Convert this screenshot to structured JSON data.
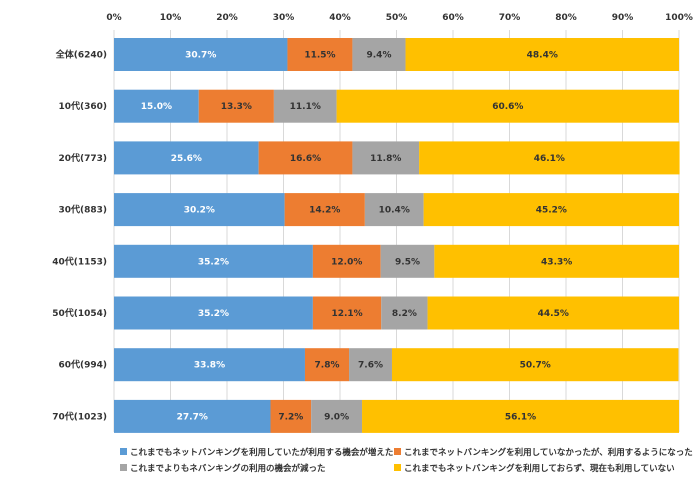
{
  "chart_data": {
    "type": "bar",
    "orientation": "horizontal",
    "stacked": true,
    "xlim": [
      0,
      100
    ],
    "x_ticks": [
      "0%",
      "10%",
      "20%",
      "30%",
      "40%",
      "50%",
      "60%",
      "70%",
      "80%",
      "90%",
      "100%"
    ],
    "grid": true,
    "legend_position": "bottom",
    "categories": [
      "全体(6240)",
      "10代(360)",
      "20代(773)",
      "30代(883)",
      "40代(1153)",
      "50代(1054)",
      "60代(994)",
      "70代(1023)"
    ],
    "series": [
      {
        "name": "これまでもネットバンキングを利用していたが利用する機会が増えた",
        "color": "#5b9bd5",
        "label_color": "#ffffff",
        "values": [
          30.7,
          15.0,
          25.6,
          30.2,
          35.2,
          35.2,
          33.8,
          27.7
        ],
        "labels": [
          "30.7%",
          "15.0%",
          "25.6%",
          "30.2%",
          "35.2%",
          "35.2%",
          "33.8%",
          "27.7%"
        ]
      },
      {
        "name": "これまでネットバンキングを利用していなかったが、利用するようになった",
        "color": "#ed7d31",
        "label_color": "#333333",
        "values": [
          11.5,
          13.3,
          16.6,
          14.2,
          12.0,
          12.1,
          7.8,
          7.2
        ],
        "labels": [
          "11.5%",
          "13.3%",
          "16.6%",
          "14.2%",
          "12.0%",
          "12.1%",
          "7.8%",
          "7.2%"
        ]
      },
      {
        "name": "これまでよりもネバンキングの利用の機会が減った",
        "color": "#a5a5a5",
        "label_color": "#333333",
        "values": [
          9.4,
          11.1,
          11.8,
          10.4,
          9.5,
          8.2,
          7.6,
          9.0
        ],
        "labels": [
          "9.4%",
          "11.1%",
          "11.8%",
          "10.4%",
          "9.5%",
          "8.2%",
          "7.6%",
          "9.0%"
        ]
      },
      {
        "name": "これまでもネットバンキングを利用しておらず、現在も利用していない",
        "color": "#ffc000",
        "label_color": "#333333",
        "values": [
          48.4,
          60.6,
          46.1,
          45.2,
          43.3,
          44.5,
          50.7,
          56.1
        ],
        "labels": [
          "48.4%",
          "60.6%",
          "46.1%",
          "45.2%",
          "43.3%",
          "44.5%",
          "50.7%",
          "56.1%"
        ]
      }
    ]
  }
}
